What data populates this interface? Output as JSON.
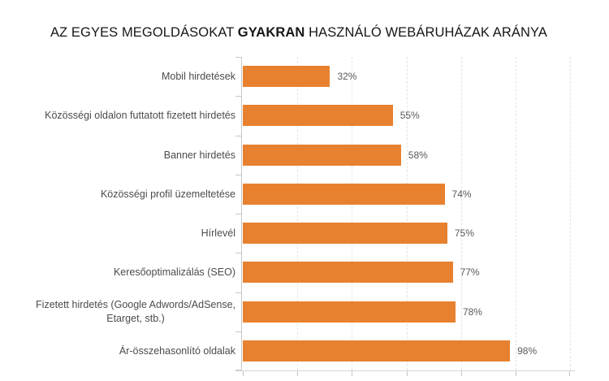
{
  "title_parts": {
    "pre": "AZ EGYES MEGOLDÁSOKAT ",
    "bold": "GYAKRAN",
    "post": " HASZNÁLÓ WEBÁRUHÁZAK ARÁNYA"
  },
  "chart_data": {
    "type": "bar",
    "orientation": "horizontal",
    "title": "AZ EGYES MEGOLDÁSOKAT GYAKRAN HASZNÁLÓ WEBÁRUHÁZAK ARÁNYA",
    "categories": [
      "Mobil hirdetések",
      "Közösségi oldalon futtatott fizetett hirdetés",
      "Banner hirdetés",
      "Közösségi profil üzemeltetése",
      "Hírlevél",
      "Keresőoptimalizálás (SEO)",
      "Fizetett hirdetés (Google Adwords/AdSense,\nEtarget, stb.)",
      "Ár-összehasonlító oldalak"
    ],
    "values": [
      32,
      55,
      58,
      74,
      75,
      77,
      78,
      98
    ],
    "value_labels": [
      "32%",
      "55%",
      "58%",
      "74%",
      "75%",
      "77%",
      "78%",
      "98%"
    ],
    "xlabel": "",
    "ylabel": "",
    "xlim": [
      0,
      120
    ],
    "gridline_step": 20,
    "grid": true,
    "legend": "none",
    "bar_color": "#E8812F"
  },
  "colors": {
    "bar": "#E8812F",
    "title_text": "#161616",
    "category_label": "#4A4B4D",
    "value_label": "#58595B",
    "gridline": "#E5E5E7",
    "axis": "#C7C7C9"
  }
}
